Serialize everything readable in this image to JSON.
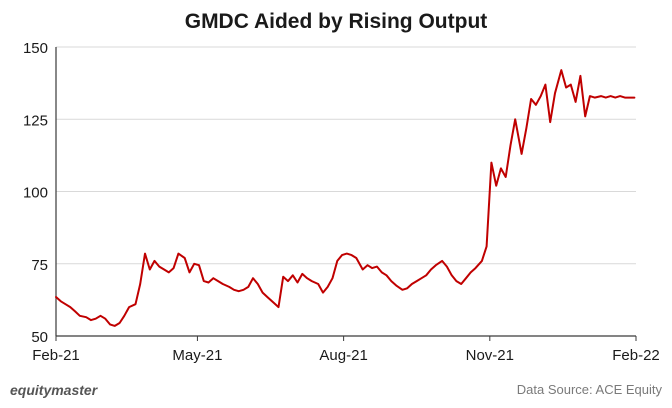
{
  "brand": "equitymaster",
  "source": "Data Source: ACE Equity",
  "colors": {
    "line": "#c00000",
    "grid": "#d9d9d9",
    "axis": "#3a3a3a",
    "text": "#1a1a1a"
  },
  "chart_data": {
    "type": "line",
    "title": "GMDC Aided by Rising Output",
    "xlabel": "",
    "ylabel": "",
    "ylim": [
      50,
      150
    ],
    "xlim": [
      "2021-02-01",
      "2022-02-01"
    ],
    "yticks": [
      50,
      75,
      100,
      125,
      150
    ],
    "xticks": [
      {
        "date": "2021-02-01",
        "label": "Feb-21"
      },
      {
        "date": "2021-05-01",
        "label": "May-21"
      },
      {
        "date": "2021-08-01",
        "label": "Aug-21"
      },
      {
        "date": "2021-11-01",
        "label": "Nov-21"
      },
      {
        "date": "2022-02-01",
        "label": "Feb-22"
      }
    ],
    "grid": "horizontal",
    "series": [
      {
        "x": [
          "2021-02-01",
          "2021-02-04",
          "2021-02-07",
          "2021-02-10",
          "2021-02-13",
          "2021-02-16",
          "2021-02-20",
          "2021-02-23",
          "2021-02-26",
          "2021-03-01",
          "2021-03-04",
          "2021-03-07",
          "2021-03-10",
          "2021-03-13",
          "2021-03-16",
          "2021-03-19",
          "2021-03-23",
          "2021-03-26",
          "2021-03-29",
          "2021-04-01",
          "2021-04-04",
          "2021-04-07",
          "2021-04-10",
          "2021-04-13",
          "2021-04-16",
          "2021-04-19",
          "2021-04-23",
          "2021-04-26",
          "2021-04-29",
          "2021-05-02",
          "2021-05-05",
          "2021-05-08",
          "2021-05-11",
          "2021-05-14",
          "2021-05-17",
          "2021-05-21",
          "2021-05-24",
          "2021-05-27",
          "2021-05-30",
          "2021-06-02",
          "2021-06-05",
          "2021-06-08",
          "2021-06-11",
          "2021-06-14",
          "2021-06-18",
          "2021-06-21",
          "2021-06-24",
          "2021-06-27",
          "2021-06-30",
          "2021-07-03",
          "2021-07-06",
          "2021-07-09",
          "2021-07-12",
          "2021-07-16",
          "2021-07-19",
          "2021-07-22",
          "2021-07-25",
          "2021-07-28",
          "2021-07-31",
          "2021-08-03",
          "2021-08-06",
          "2021-08-09",
          "2021-08-13",
          "2021-08-16",
          "2021-08-19",
          "2021-08-22",
          "2021-08-25",
          "2021-08-28",
          "2021-08-31",
          "2021-09-03",
          "2021-09-07",
          "2021-09-10",
          "2021-09-13",
          "2021-09-16",
          "2021-09-19",
          "2021-09-22",
          "2021-09-25",
          "2021-09-28",
          "2021-10-02",
          "2021-10-05",
          "2021-10-08",
          "2021-10-11",
          "2021-10-14",
          "2021-10-17",
          "2021-10-20",
          "2021-10-23",
          "2021-10-27",
          "2021-10-30",
          "2021-11-02",
          "2021-11-05",
          "2021-11-08",
          "2021-11-11",
          "2021-11-14",
          "2021-11-17",
          "2021-11-21",
          "2021-11-24",
          "2021-11-27",
          "2021-11-30",
          "2021-12-03",
          "2021-12-06",
          "2021-12-09",
          "2021-12-12",
          "2021-12-16",
          "2021-12-19",
          "2021-12-22",
          "2021-12-25",
          "2021-12-28",
          "2021-12-31",
          "2022-01-03",
          "2022-01-06",
          "2022-01-10",
          "2022-01-13",
          "2022-01-16",
          "2022-01-19",
          "2022-01-22",
          "2022-01-25",
          "2022-01-28",
          "2022-01-31"
        ],
        "y": [
          63.5,
          62,
          61,
          60,
          58.5,
          57,
          56.5,
          55.5,
          56,
          57,
          56,
          54,
          53.5,
          54.5,
          57,
          60,
          61,
          68,
          78.5,
          73,
          76,
          74,
          73,
          72,
          73.5,
          78.5,
          77,
          72,
          75,
          74.5,
          69,
          68.5,
          70,
          69,
          68,
          67,
          66,
          65.5,
          66,
          67,
          70,
          68,
          65,
          63.5,
          61.5,
          60,
          70.5,
          69,
          71,
          68.5,
          71.5,
          70,
          69,
          68,
          65,
          67,
          70,
          76,
          78,
          78.5,
          78,
          77,
          73,
          74.5,
          73.5,
          74,
          72,
          71,
          69,
          67.5,
          66,
          66.5,
          68,
          69,
          70,
          71,
          73,
          74.5,
          76,
          74,
          71,
          69,
          68,
          70,
          72,
          73.5,
          76,
          81,
          110,
          102,
          108,
          105,
          116,
          125,
          113,
          122,
          132,
          130,
          133,
          137,
          124,
          134,
          142,
          136,
          137,
          131,
          140,
          126,
          133,
          132.5,
          133,
          132.5,
          133,
          132.5,
          133,
          132.5,
          132.5,
          132.5
        ]
      }
    ]
  }
}
